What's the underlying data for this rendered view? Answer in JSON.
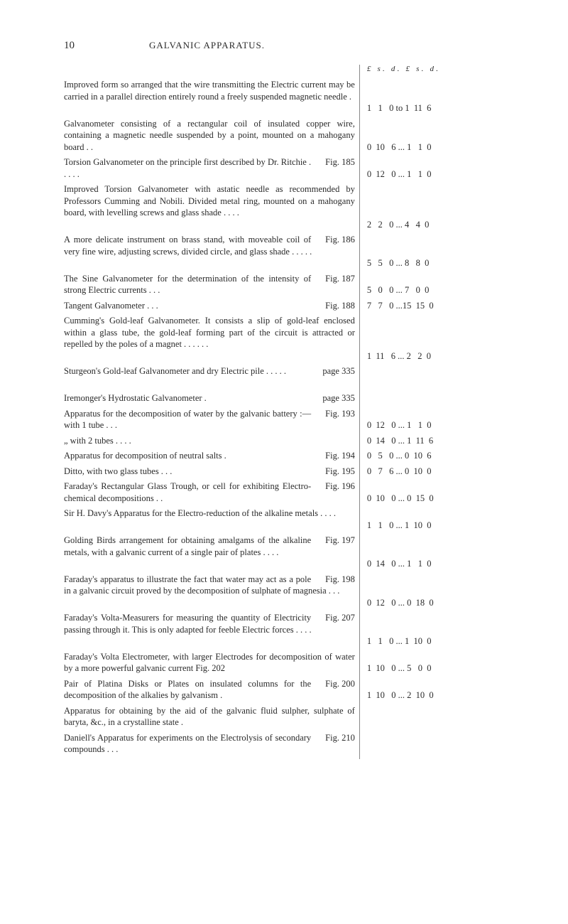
{
  "page_number": "10",
  "running_title": "GALVANIC APPARATUS.",
  "price_header": "£  s.  d.    £   s.  d.",
  "entries": [
    {
      "desc": "Improved form so arranged that the wire transmitting the Electric current may be carried in a parallel direction entirely round a freely suspended magnetic needle .",
      "fig": "",
      "price": "1   1   0 to 1  11  6",
      "lines": 3
    },
    {
      "desc": "Galvanometer consisting of a rectangular coil of insulated copper wire, containing a magnetic needle suspended by a point, mounted on a mahogany board     .          .",
      "fig": "",
      "price": "0  10   6 ... 1   1  0",
      "lines": 3
    },
    {
      "desc": "Torsion Galvanometer on the principle first described by Dr. Ritchie      .        .         .         .          .",
      "fig": "Fig. 185",
      "price": "0  12   0 ... 1   1  0",
      "lines": 2
    },
    {
      "desc": "Improved Torsion Galvanometer with astatic needle as recommended by Professors Cumming and Nobili. Divided metal ring, mounted on a mahogany board, with levelling screws and glass shade     .        .           .             .",
      "fig": "",
      "price": "2   2   0 ... 4   4  0",
      "lines": 4
    },
    {
      "desc": "A more delicate instrument on brass stand, with moveable coil of very fine wire, adjusting screws, divided circle, and glass shade         .         .         .        .         .",
      "fig": "Fig. 186",
      "price": "5   5   0 ... 8   8  0",
      "lines": 3
    },
    {
      "desc": "The Sine Galvanometer for the determination of the intensity of strong Electric currents .         .         .",
      "fig": "Fig. 187",
      "price": "5   0   0 ... 7   0  0",
      "lines": 2
    },
    {
      "desc": "Tangent Galvanometer          .           .            .",
      "fig": "Fig. 188",
      "price": "7   7   0 ...15  15  0",
      "lines": 1
    },
    {
      "desc": "Cumming's Gold-leaf Galvanometer. It consists a slip of gold-leaf enclosed within a glass tube, the gold-leaf forming part of the circuit is attracted or repelled by the poles of a magnet     .         .         .         .         .         .",
      "fig": "",
      "price": "1  11   6 ... 2   2  0",
      "lines": 4
    },
    {
      "desc": "Sturgeon's Gold-leaf Galvanometer and dry Electric pile .       .          .            .           .",
      "fig": "page 335",
      "price": "",
      "lines": 2
    },
    {
      "desc": "Iremonger's Hydrostatic Galvanometer           .",
      "fig": "page 335",
      "price": "",
      "lines": 1
    },
    {
      "desc": "Apparatus for the decomposition of water by the galvanic battery :—with 1 tube        .           .           .",
      "fig": "Fig. 193",
      "price": "0  12   0 ... 1   1  0",
      "lines": 2
    },
    {
      "desc": "       „       with 2 tubes     .         .           .           .",
      "fig": "",
      "price": "0  14   0 ... 1  11  6",
      "lines": 1
    },
    {
      "desc": "Apparatus for decomposition of neutral salts .",
      "fig": "Fig. 194",
      "price": "0   5   0 ... 0  10  6",
      "lines": 1
    },
    {
      "desc": "Ditto, with two glass tubes    .           .           .",
      "fig": "Fig. 195",
      "price": "0   7   6 ... 0  10  0",
      "lines": 1
    },
    {
      "desc": "Faraday's Rectangular Glass Trough, or cell for exhibiting Electro-chemical decompositions    .         .",
      "fig": "Fig. 196",
      "price": "0  10   0 ... 0  15  0",
      "lines": 2
    },
    {
      "desc": "Sir H. Davy's Apparatus for the Electro-reduction of the alkaline metals       .        .         .           .",
      "fig": "",
      "price": "1   1   0 ... 1  10  0",
      "lines": 2
    },
    {
      "desc": "Golding Birds arrangement for obtaining amalgams of the alkaline metals, with a galvanic current of a single pair of plates    .          .           .           .",
      "fig": "Fig. 197",
      "price": "0  14   0 ... 1   1  0",
      "lines": 3
    },
    {
      "desc": "Faraday's apparatus to illustrate the fact that water may act as a pole in a galvanic circuit proved by the decomposition of sulphate of magnesia    .            .            .",
      "fig": "Fig. 198",
      "price": "0  12   0 ... 0  18  0",
      "lines": 3
    },
    {
      "desc": "Faraday's Volta-Measurers for measuring the quantity of Electricity passing through it. This is only adapted for feeble Electric forces       .        .         .           .",
      "fig": "Fig. 207",
      "price": "1   1   0 ... 1  10  0",
      "lines": 3
    },
    {
      "desc": "Faraday's Volta Electrometer, with larger Electrodes for decomposition of water by a more powerful galvanic current Fig. 202",
      "fig": "",
      "price": "1  10   0 ... 5   0  0",
      "lines": 2
    },
    {
      "desc": "Pair of Platina Disks or Plates on insulated columns for the decomposition of the alkalies by galvanism .",
      "fig": "Fig. 200",
      "price": "1  10   0 ... 2  10  0",
      "lines": 2
    },
    {
      "desc": "Apparatus for obtaining by the aid of the galvanic fluid sulpher, sulphate of baryta, &c., in a crystalline state .",
      "fig": "",
      "price": "",
      "lines": 2
    },
    {
      "desc": "Daniell's Apparatus for experiments on the Electrolysis of secondary compounds       .          .           .",
      "fig": "Fig. 210",
      "price": "",
      "lines": 2
    }
  ]
}
